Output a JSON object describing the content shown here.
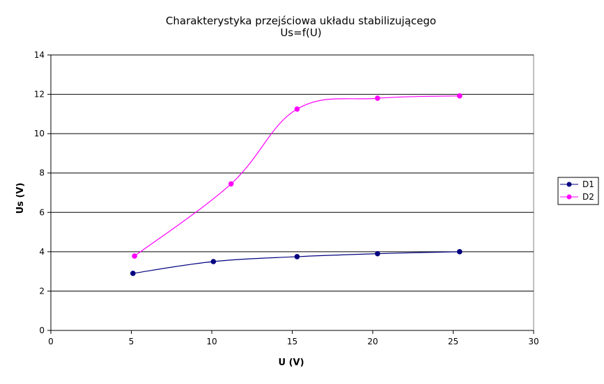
{
  "chart_data": {
    "type": "line",
    "title": "Charakterystyka przejściowa układu stabilizującego",
    "subtitle": "Us=f(U)",
    "xlabel": "U (V)",
    "ylabel": "Us (V)",
    "xlim": [
      0,
      30
    ],
    "ylim": [
      0,
      14
    ],
    "xticks": [
      0,
      5,
      10,
      15,
      20,
      25,
      30
    ],
    "yticks": [
      0,
      2,
      4,
      6,
      8,
      10,
      12,
      14
    ],
    "grid": "horizontal",
    "legend": "right",
    "series": [
      {
        "name": "D1",
        "color": "#000080",
        "marker": "circle",
        "x": [
          5.1,
          10.1,
          15.3,
          20.3,
          25.4
        ],
        "y": [
          2.9,
          3.5,
          3.75,
          3.9,
          4.0
        ]
      },
      {
        "name": "D2",
        "color": "#ff00ff",
        "marker": "circle",
        "x": [
          5.2,
          11.2,
          15.3,
          20.3,
          25.4
        ],
        "y": [
          3.78,
          7.45,
          11.25,
          11.8,
          11.92
        ]
      }
    ]
  }
}
